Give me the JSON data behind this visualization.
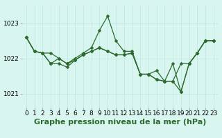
{
  "xlabel": "Graphe pression niveau de la mer (hPa)",
  "x": [
    0,
    1,
    2,
    3,
    4,
    5,
    6,
    7,
    8,
    9,
    10,
    11,
    12,
    13,
    14,
    15,
    16,
    17,
    18,
    19,
    20,
    21,
    22,
    23
  ],
  "series": [
    [
      1022.6,
      1022.2,
      1022.15,
      1022.15,
      1022.0,
      1021.85,
      1022.0,
      1022.15,
      1022.3,
      1022.8,
      1023.2,
      1022.5,
      1022.2,
      1022.2,
      1021.55,
      1021.55,
      1021.65,
      1021.35,
      1021.85,
      1021.05,
      1021.85,
      1022.15,
      1022.5,
      1022.5
    ],
    [
      1022.6,
      1022.2,
      1022.15,
      1021.85,
      1021.85,
      1021.75,
      1021.95,
      1022.1,
      1022.2,
      1022.3,
      1022.2,
      1022.1,
      1022.1,
      1022.15,
      1021.55,
      1021.55,
      1021.4,
      1021.35,
      1021.35,
      1021.85,
      1021.85,
      1022.15,
      1022.5,
      1022.5
    ],
    [
      1022.6,
      1022.2,
      1022.15,
      1021.85,
      1022.0,
      1021.85,
      1021.95,
      1022.1,
      1022.2,
      1022.3,
      1022.2,
      1022.1,
      1022.1,
      1022.15,
      1021.55,
      1021.55,
      1021.4,
      1021.35,
      1021.35,
      1021.05,
      1021.85,
      1022.15,
      1022.5,
      1022.5
    ]
  ],
  "line_color": "#2d6a2d",
  "marker": "D",
  "markersize": 2.5,
  "bg_color": "#d8f5f0",
  "grid_color": "#b8e8e0",
  "ylim": [
    1020.6,
    1023.5
  ],
  "yticks": [
    1021,
    1022,
    1023
  ],
  "xlim": [
    -0.5,
    23.5
  ],
  "linewidth": 0.9,
  "xlabel_fontsize": 8,
  "tick_fontsize": 6.5
}
